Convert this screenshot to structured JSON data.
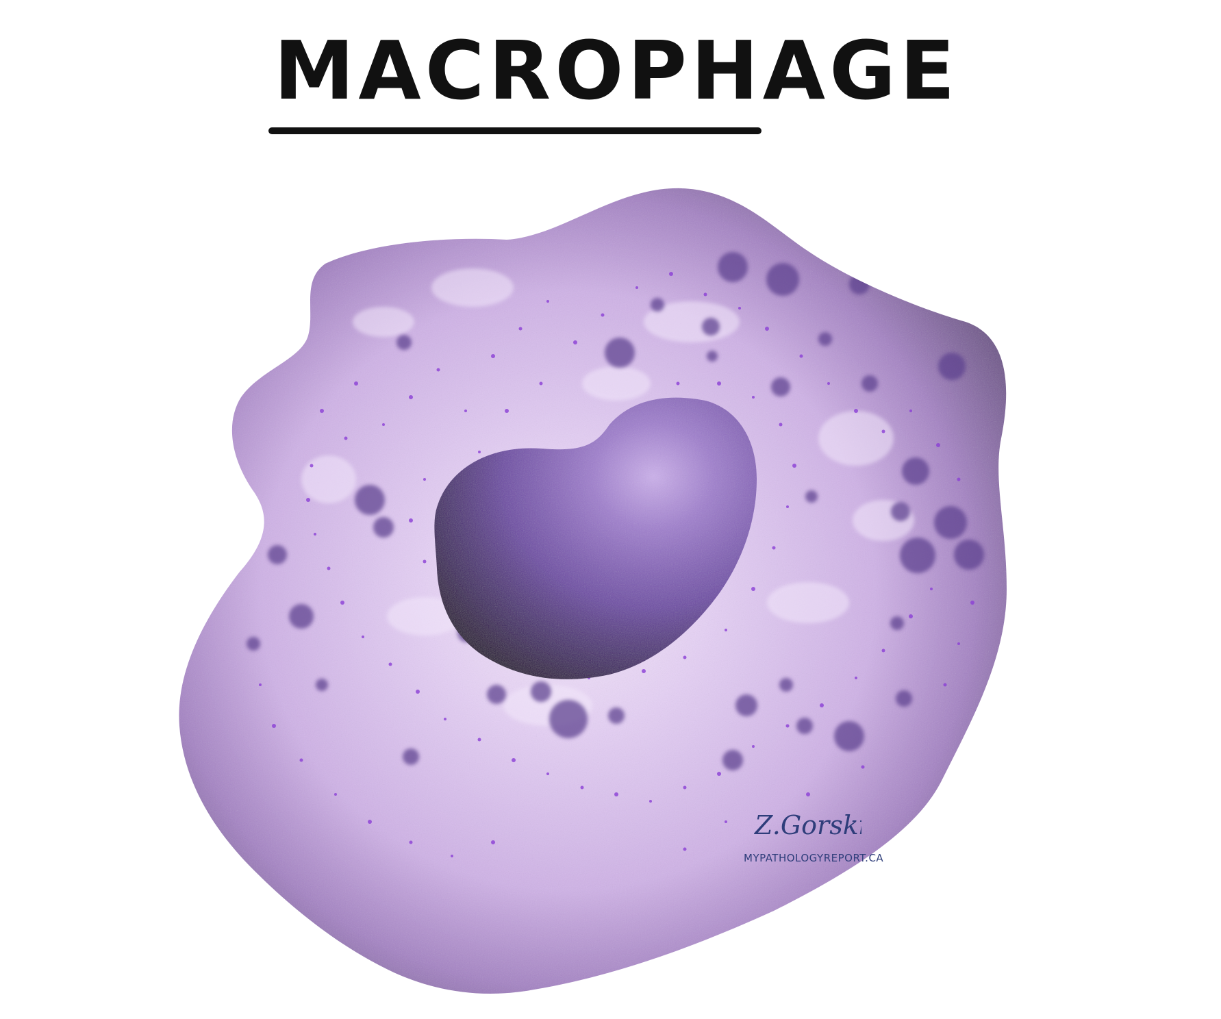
{
  "title": "MACROPHAGE",
  "signature": "Z.Gorski",
  "credit": "MYPATHOLOGYREPORT.CA",
  "colors": {
    "title_ink": "#111111",
    "cell_rim": "#6e5489",
    "cell_body": "#d2b7e8",
    "cell_center": "#f1e4fa",
    "granule": "#5b3f8e",
    "speckle": "#8b3fd6",
    "nucleus_dark": "#24102f",
    "nucleus_light": "#a883cf",
    "signature_ink": "#2e3d7a"
  }
}
